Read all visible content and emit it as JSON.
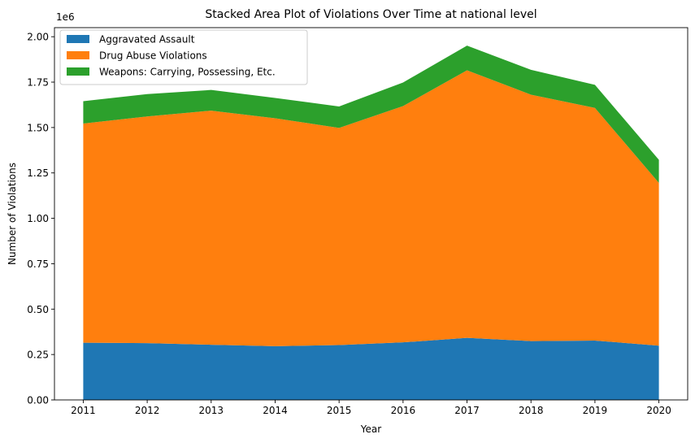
{
  "chart_data": {
    "type": "area",
    "stacked": true,
    "title": "Stacked Area Plot of Violations Over Time at national level",
    "xlabel": "Year",
    "ylabel": "Number of Violations",
    "y_offset_label": "1e6",
    "x": [
      2011,
      2012,
      2013,
      2014,
      2015,
      2016,
      2017,
      2018,
      2019,
      2020
    ],
    "x_tick_labels": [
      "2011",
      "2012",
      "2013",
      "2014",
      "2015",
      "2016",
      "2017",
      "2018",
      "2019",
      "2020"
    ],
    "y_ticks": [
      0,
      0.25,
      0.5,
      0.75,
      1.0,
      1.25,
      1.5,
      1.75,
      2.0
    ],
    "y_tick_labels": [
      "0.00",
      "0.25",
      "0.50",
      "0.75",
      "1.00",
      "1.25",
      "1.50",
      "1.75",
      "2.00"
    ],
    "xlim": [
      2010.55,
      2020.45
    ],
    "ylim": [
      0,
      2.05
    ],
    "grid": false,
    "legend_position": "upper-left",
    "series": [
      {
        "name": "Aggravated Assault",
        "color": "#1f77b4",
        "values": [
          0.315,
          0.313,
          0.304,
          0.296,
          0.302,
          0.317,
          0.342,
          0.324,
          0.327,
          0.299
        ]
      },
      {
        "name": "Drug Abuse Violations",
        "color": "#ff7f0e",
        "values": [
          1.207,
          1.248,
          1.289,
          1.255,
          1.196,
          1.301,
          1.473,
          1.357,
          1.281,
          0.896
        ]
      },
      {
        "name": "Weapons: Carrying, Possessing, Etc.",
        "color": "#2ca02c",
        "values": [
          0.123,
          0.123,
          0.114,
          0.112,
          0.118,
          0.13,
          0.136,
          0.137,
          0.127,
          0.127
        ]
      }
    ]
  }
}
